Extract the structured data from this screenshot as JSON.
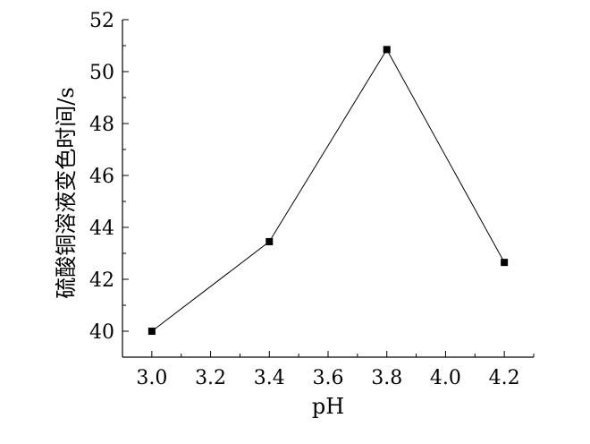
{
  "chart_data": {
    "type": "line",
    "title": "",
    "xlabel": "pH",
    "ylabel": "硫酸铜溶液变色时间/s",
    "x": [
      3.0,
      3.4,
      3.8,
      4.2
    ],
    "series": [
      {
        "values": [
          40.0,
          43.45,
          50.85,
          42.65
        ]
      }
    ],
    "xlim": [
      2.9,
      4.3
    ],
    "ylim": [
      39.0,
      52.0
    ],
    "xticks": [
      "3.0",
      "3.2",
      "3.4",
      "3.6",
      "3.8",
      "4.0",
      "4.2"
    ],
    "yticks": [
      "40",
      "42",
      "44",
      "46",
      "48",
      "50",
      "52"
    ],
    "marker": "square",
    "line_color": "#000000",
    "grid": false,
    "legend": "none"
  }
}
